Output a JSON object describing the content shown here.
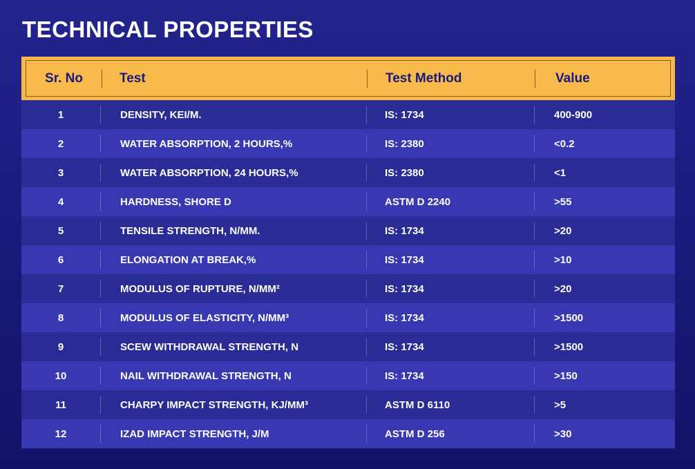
{
  "title": "TECHNICAL PROPERTIES",
  "colors": {
    "header_bg": "#f6b94a",
    "header_text": "#1a1a7c",
    "row_odd": "#2b2b96",
    "row_even": "#3838b2",
    "page_bg": "#1a1a7c"
  },
  "table": {
    "headers": [
      "Sr. No",
      "Test",
      "Test Method",
      "Value"
    ],
    "rows": [
      [
        "1",
        "DENSITY, KEI/M.",
        "IS: 1734",
        "400-900"
      ],
      [
        "2",
        "WATER ABSORPTION, 2 HOURS,%",
        "IS: 2380",
        "<0.2"
      ],
      [
        "3",
        "WATER ABSORPTION, 24 HOURS,%",
        "IS: 2380",
        "<1"
      ],
      [
        "4",
        "HARDNESS, SHORE D",
        "ASTM D 2240",
        ">55"
      ],
      [
        "5",
        "TENSILE STRENGTH, N/MM.",
        "IS: 1734",
        ">20"
      ],
      [
        "6",
        "ELONGATION AT BREAK,%",
        "IS: 1734",
        ">10"
      ],
      [
        "7",
        "MODULUS OF RUPTURE, N/MM²",
        "IS: 1734",
        ">20"
      ],
      [
        "8",
        "MODULUS OF ELASTICITY, N/MM³",
        "IS: 1734",
        ">1500"
      ],
      [
        "9",
        "SCEW WITHDRAWAL STRENGTH, N",
        "IS: 1734",
        ">1500"
      ],
      [
        "10",
        "NAIL WITHDRAWAL STRENGTH, N",
        "IS: 1734",
        ">150"
      ],
      [
        "11",
        "CHARPY IMPACT STRENGTH, KJ/MM³",
        "ASTM D 6110",
        ">5"
      ],
      [
        "12",
        "IZAD IMPACT STRENGTH, J/M",
        "ASTM D 256",
        ">30"
      ]
    ]
  }
}
